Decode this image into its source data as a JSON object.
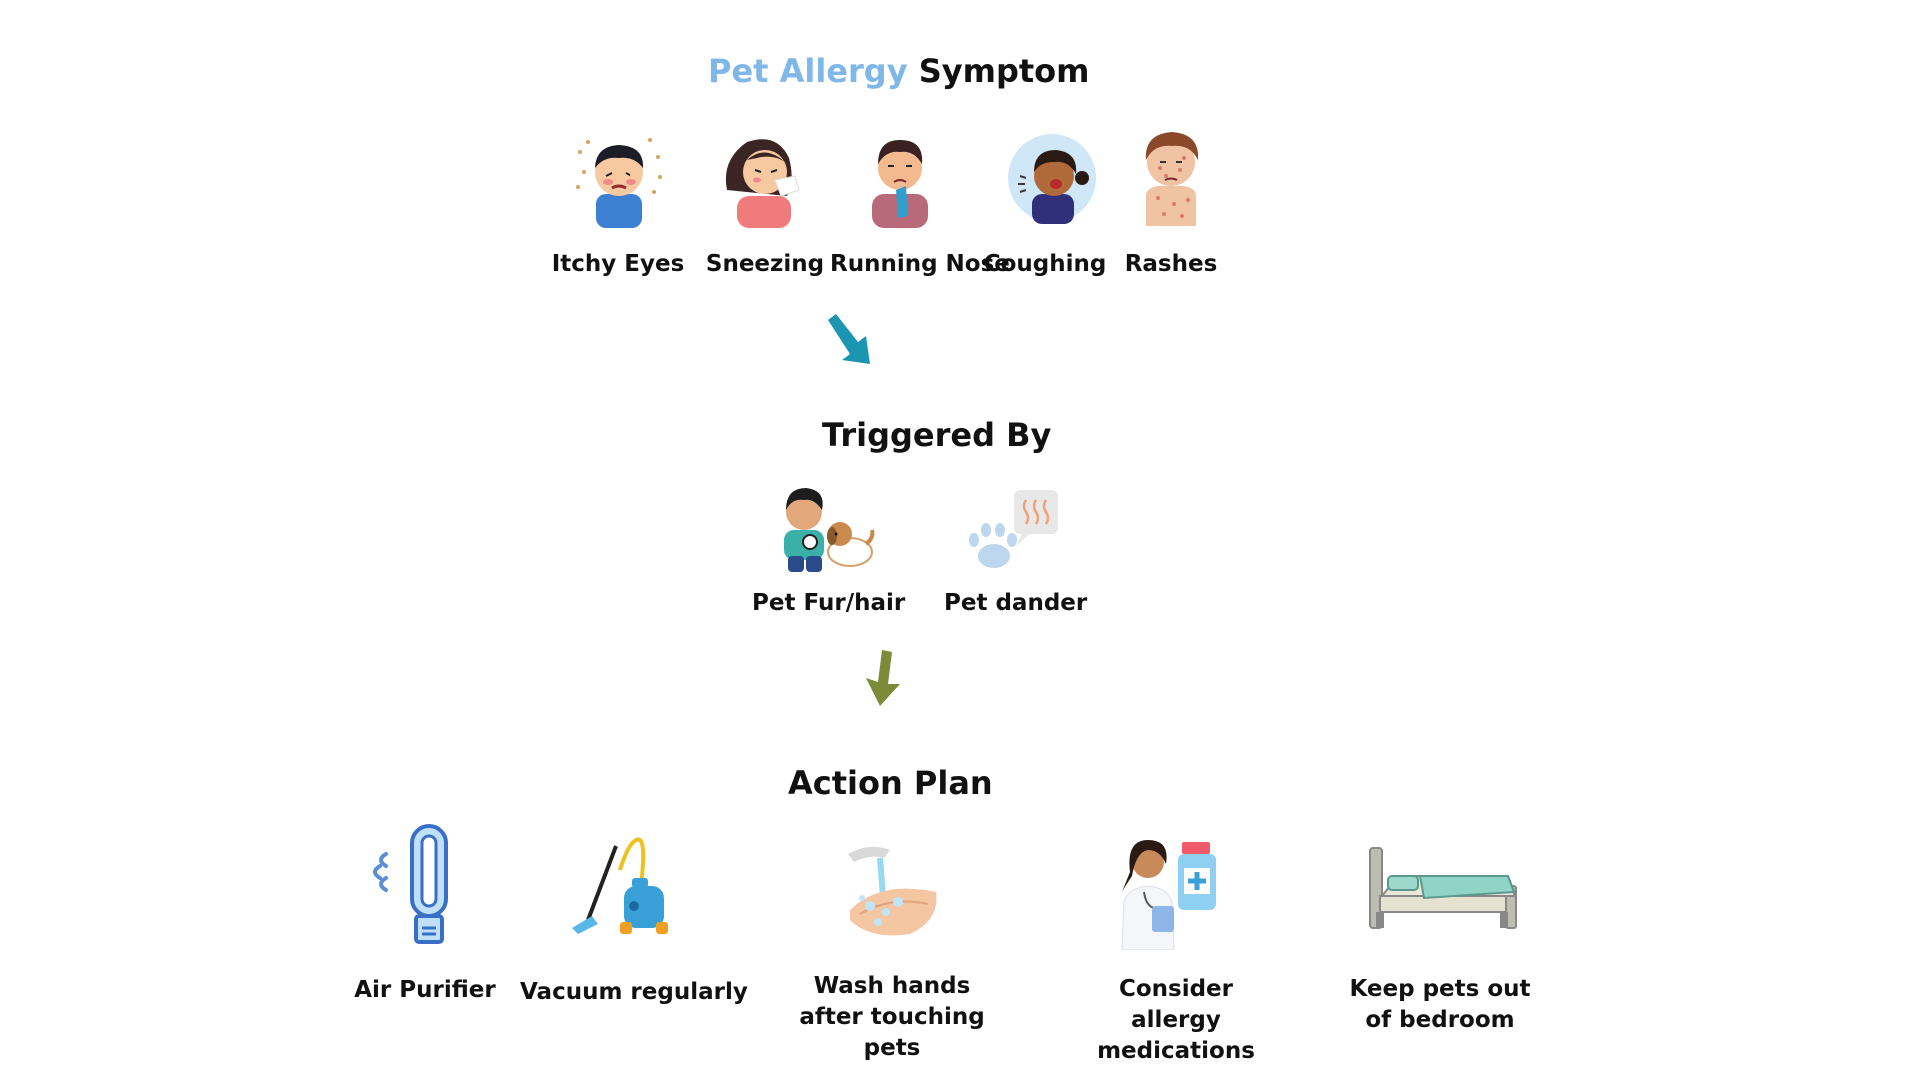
{
  "colors": {
    "accent_title": "#7fb8e8",
    "arrow_teal": "#1b96b2",
    "arrow_olive": "#7b8b38",
    "text": "#111111"
  },
  "symptoms": {
    "title_accent": "Pet Allergy",
    "title_rest": "Symptom",
    "items": [
      {
        "label": "Itchy Eyes",
        "icon": "itchy-eyes-child-icon"
      },
      {
        "label": "Sneezing",
        "icon": "sneezing-girl-icon"
      },
      {
        "label": "Running Nose",
        "icon": "runny-nose-boy-icon"
      },
      {
        "label": "Coughing",
        "icon": "coughing-girl-icon"
      },
      {
        "label": "Rashes",
        "icon": "rashes-boy-icon"
      }
    ]
  },
  "triggers": {
    "title": "Triggered By",
    "items": [
      {
        "label": "Pet Fur/hair",
        "icon": "boy-with-dog-icon"
      },
      {
        "label": "Pet dander",
        "icon": "paw-dander-icon"
      }
    ]
  },
  "actions": {
    "title": "Action Plan",
    "items": [
      {
        "label": "Air Purifier",
        "icon": "air-purifier-icon"
      },
      {
        "label": "Vacuum regularly",
        "icon": "vacuum-cleaner-icon"
      },
      {
        "label": "Wash hands after touching pets",
        "icon": "hand-washing-icon"
      },
      {
        "label": "Consider allergy medications",
        "icon": "doctor-medication-icon"
      },
      {
        "label": "Keep pets out of bedroom",
        "icon": "bed-icon"
      }
    ]
  }
}
